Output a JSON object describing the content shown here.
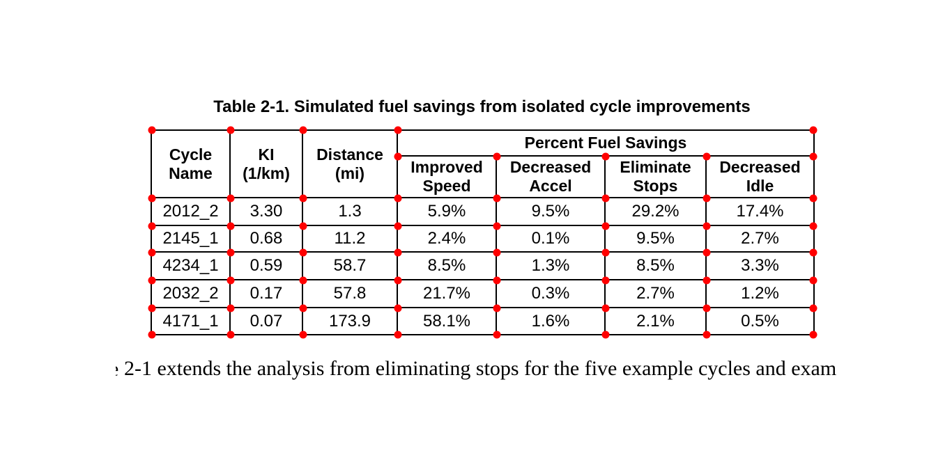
{
  "document": {
    "table_caption": "Table 2-1. Simulated fuel savings from isolated cycle improvements",
    "paragraph": {
      "clipped_prefix": "e",
      "visible_text": "2-1 extends the analysis from eliminating stops for the five example cycles and exam"
    }
  },
  "table": {
    "type": "table",
    "group_header": "Percent Fuel Savings",
    "column_headers": [
      "Cycle\nName",
      "KI\n(1/km)",
      "Distance\n(mi)",
      "Improved\nSpeed",
      "Decreased\nAccel",
      "Eliminate\nStops",
      "Decreased\nIdle"
    ],
    "rows": [
      [
        "2012_2",
        "3.30",
        "1.3",
        "5.9%",
        "9.5%",
        "29.2%",
        "17.4%"
      ],
      [
        "2145_1",
        "0.68",
        "11.2",
        "2.4%",
        "0.1%",
        "9.5%",
        "2.7%"
      ],
      [
        "4234_1",
        "0.59",
        "58.7",
        "8.5%",
        "1.3%",
        "8.5%",
        "3.3%"
      ],
      [
        "2032_2",
        "0.17",
        "57.8",
        "21.7%",
        "0.3%",
        "2.7%",
        "1.2%"
      ],
      [
        "4171_1",
        "0.07",
        "173.9",
        "58.1%",
        "1.6%",
        "2.1%",
        "0.5%"
      ]
    ]
  },
  "annotation": {
    "marker": "cell-corner-dot",
    "marker_color": "#ff0000"
  }
}
